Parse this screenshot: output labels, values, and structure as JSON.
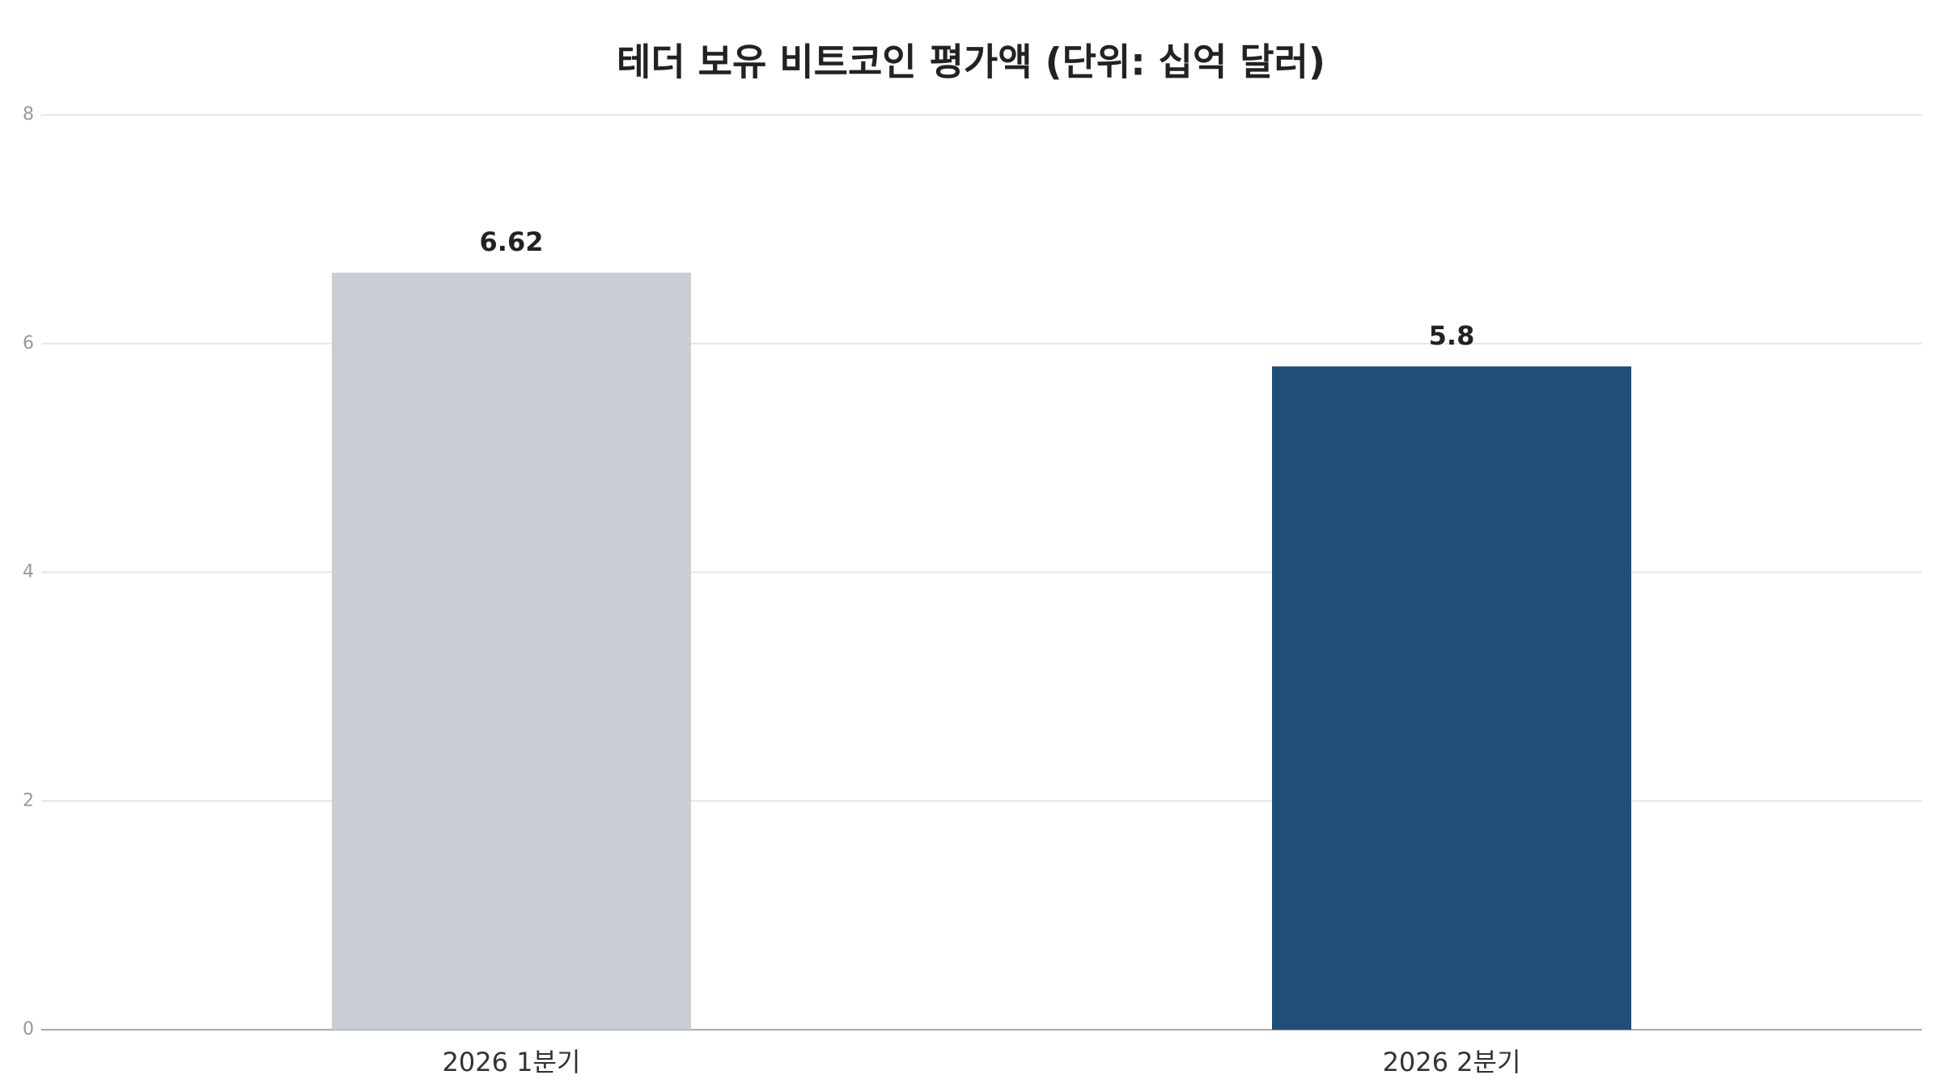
{
  "chart_data": {
    "type": "bar",
    "title": "테더 보유 비트코인 평가액 (단위: 십억 달러)",
    "categories": [
      "2026 1분기",
      "2026 2분기"
    ],
    "values": [
      6.62,
      5.8
    ],
    "colors": [
      "#c9cdd4",
      "#1f4e79"
    ],
    "ylim": [
      0,
      8
    ],
    "yticks": [
      0,
      2,
      4,
      6,
      8
    ],
    "grid": true
  }
}
